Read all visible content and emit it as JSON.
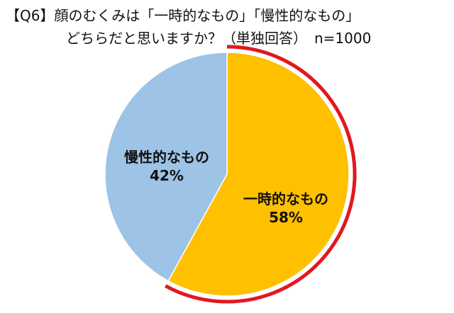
{
  "title_line1": "【Q6】顔のむくみは「一時的なもの」「慢性的なもの」",
  "title_line2": "どちらだと思いますか？（単独回答）　n=1000",
  "chart_data": {
    "type": "pie",
    "title": "【Q6】顔のむくみは「一時的なもの」「慢性的なもの」どちらだと思いますか？（単独回答）　n=1000",
    "slices": [
      {
        "label": "一時的なもの",
        "value": 58,
        "value_label": "58%",
        "color": "#FFC000",
        "highlighted": true
      },
      {
        "label": "慢性的なもの",
        "value": 42,
        "value_label": "42%",
        "color": "#9DC3E6",
        "highlighted": false
      }
    ],
    "highlight_color": "#E0191F",
    "start": "12 o'clock",
    "direction": "clockwise",
    "legend": "none"
  }
}
